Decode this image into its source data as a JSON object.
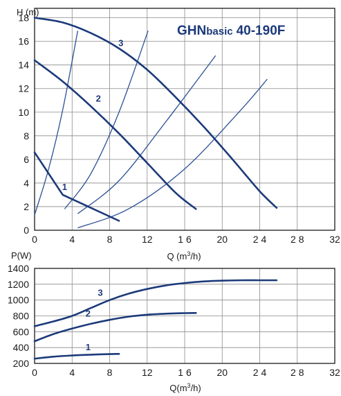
{
  "chart_data": [
    {
      "type": "line",
      "title": "GHNbasic 40-190F",
      "title_parts": {
        "brand": "GHN",
        "series": "basic",
        "model": "40-190F"
      },
      "ylabel": "H (m)",
      "xlabel": "Q (m3/h)",
      "xlabel_parts": {
        "pre": "Q (m",
        "sup": "3",
        "post": "/h)"
      },
      "xlim": [
        0,
        32
      ],
      "ylim": [
        0,
        18.8
      ],
      "x_ticks": [
        0,
        4,
        8,
        12,
        16,
        20,
        24,
        28,
        32
      ],
      "x_tick_labels": [
        "0",
        "4",
        "8",
        "12",
        "1 6",
        "20",
        "2 4",
        "2 8",
        "32"
      ],
      "y_ticks": [
        0,
        2,
        4,
        6,
        8,
        10,
        12,
        14,
        16,
        18
      ],
      "y_tick_labels": [
        "0",
        "2",
        "4",
        "6",
        "8",
        "10",
        "12",
        "14",
        "16",
        "18"
      ],
      "grid": true,
      "series": [
        {
          "name": "1",
          "x": [
            0,
            3,
            9
          ],
          "y": [
            6.6,
            3.0,
            0.8
          ]
        },
        {
          "name": "2",
          "x": [
            0,
            3,
            6,
            9,
            12,
            15,
            17.2
          ],
          "y": [
            14.4,
            12.6,
            10.5,
            8.2,
            5.7,
            3.2,
            1.8
          ]
        },
        {
          "name": "3",
          "x": [
            0,
            3,
            6,
            9,
            12,
            15,
            18,
            21,
            24,
            25.8
          ],
          "y": [
            18.0,
            17.6,
            16.7,
            15.4,
            13.6,
            11.3,
            8.8,
            6.1,
            3.3,
            1.9
          ]
        }
      ],
      "system_curves": [
        {
          "x": [
            0,
            1.5,
            3,
            4.6
          ],
          "y": [
            1.3,
            5.2,
            10.2,
            16.9
          ]
        },
        {
          "x": [
            3.2,
            6,
            9,
            12.1
          ],
          "y": [
            1.8,
            4.8,
            10.0,
            16.9
          ]
        },
        {
          "x": [
            4.6,
            9,
            14,
            19.3
          ],
          "y": [
            1.4,
            4.2,
            9.2,
            14.8
          ]
        },
        {
          "x": [
            4.6,
            10,
            16,
            22,
            24.8
          ],
          "y": [
            0.2,
            1.8,
            5.2,
            10.2,
            12.8
          ]
        }
      ],
      "curve_labels": [
        {
          "text": "1",
          "x": 3.2,
          "y": 3.4
        },
        {
          "text": "2",
          "x": 6.8,
          "y": 10.9
        },
        {
          "text": "3",
          "x": 9.2,
          "y": 15.6
        }
      ],
      "colors": {
        "curve": "#1c3a7a",
        "system_curve": "#2b4f95",
        "grid": "#8a8a8a",
        "axis": "#1a1a1a"
      }
    },
    {
      "type": "line",
      "title": "",
      "ylabel": "P(W)",
      "xlabel": "Q(m3/h)",
      "xlabel_parts": {
        "pre": "Q(m",
        "sup": "3",
        "post": "/h)"
      },
      "xlim": [
        0,
        32
      ],
      "ylim": [
        200,
        1400
      ],
      "x_ticks": [
        0,
        4,
        8,
        12,
        16,
        20,
        24,
        28,
        32
      ],
      "x_tick_labels": [
        "0",
        "4",
        "8",
        "12",
        "1 6",
        "20",
        "2 4",
        "2 8",
        "32"
      ],
      "y_ticks": [
        200,
        400,
        600,
        800,
        1000,
        1200,
        1400
      ],
      "y_tick_labels": [
        "200",
        "400",
        "600",
        "800",
        "1000",
        "1200",
        "1400"
      ],
      "grid": true,
      "series": [
        {
          "name": "1",
          "x": [
            0,
            2,
            4,
            6,
            8,
            9
          ],
          "y": [
            260,
            285,
            300,
            310,
            318,
            320
          ]
        },
        {
          "name": "2",
          "x": [
            0,
            2,
            4,
            6,
            8,
            10,
            12,
            14,
            16,
            17.2
          ],
          "y": [
            480,
            570,
            640,
            700,
            750,
            790,
            815,
            828,
            835,
            837
          ]
        },
        {
          "name": "3",
          "x": [
            0,
            2,
            4,
            6,
            8,
            10,
            12,
            14,
            16,
            18,
            20,
            22,
            24,
            25.8
          ],
          "y": [
            670,
            730,
            800,
            900,
            1000,
            1080,
            1140,
            1185,
            1215,
            1235,
            1245,
            1250,
            1250,
            1250
          ]
        }
      ],
      "curve_labels": [
        {
          "text": "1",
          "x": 5.7,
          "y": 365
        },
        {
          "text": "2",
          "x": 5.7,
          "y": 790
        },
        {
          "text": "3",
          "x": 7.0,
          "y": 1055
        }
      ],
      "colors": {
        "curve": "#1c3a7a",
        "grid": "#8a8a8a",
        "axis": "#1a1a1a"
      }
    }
  ]
}
